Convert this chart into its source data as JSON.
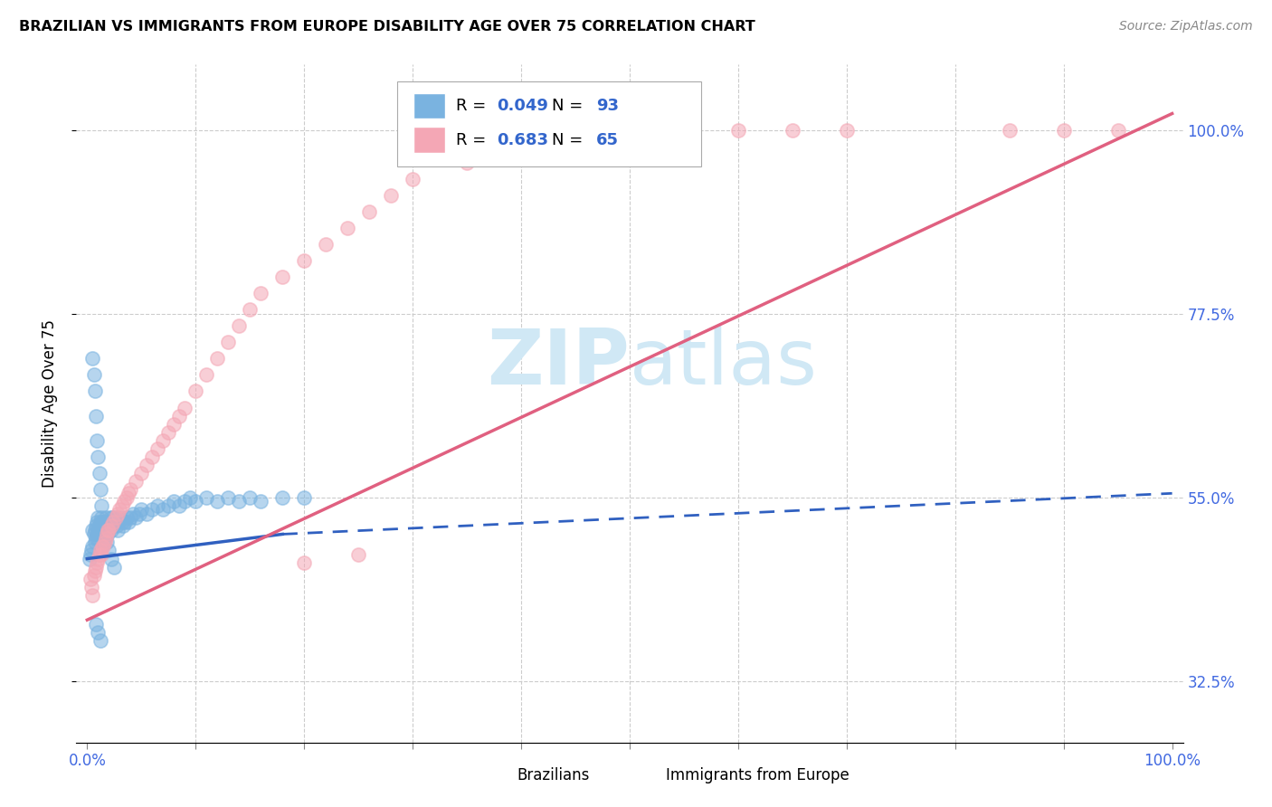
{
  "title": "BRAZILIAN VS IMMIGRANTS FROM EUROPE DISABILITY AGE OVER 75 CORRELATION CHART",
  "source": "Source: ZipAtlas.com",
  "ylabel": "Disability Age Over 75",
  "blue_color": "#7ab3e0",
  "pink_color": "#f4a7b5",
  "line_blue_color": "#3060c0",
  "line_pink_color": "#e06080",
  "watermark_zip": "ZIP",
  "watermark_atlas": "atlas",
  "watermark_color": "#d0e8f5",
  "background_color": "#ffffff",
  "legend_r_blue": "0.049",
  "legend_n_blue": "93",
  "legend_r_pink": "0.683",
  "legend_n_pink": "65",
  "blue_x": [
    0.002,
    0.003,
    0.004,
    0.005,
    0.005,
    0.006,
    0.007,
    0.007,
    0.008,
    0.008,
    0.009,
    0.009,
    0.01,
    0.01,
    0.01,
    0.011,
    0.011,
    0.012,
    0.012,
    0.013,
    0.013,
    0.014,
    0.014,
    0.015,
    0.015,
    0.016,
    0.016,
    0.017,
    0.017,
    0.018,
    0.018,
    0.019,
    0.019,
    0.02,
    0.02,
    0.021,
    0.021,
    0.022,
    0.022,
    0.023,
    0.024,
    0.025,
    0.026,
    0.027,
    0.028,
    0.029,
    0.03,
    0.032,
    0.033,
    0.035,
    0.036,
    0.038,
    0.04,
    0.042,
    0.045,
    0.048,
    0.05,
    0.055,
    0.06,
    0.065,
    0.07,
    0.075,
    0.08,
    0.085,
    0.09,
    0.095,
    0.1,
    0.11,
    0.12,
    0.13,
    0.14,
    0.15,
    0.16,
    0.18,
    0.2,
    0.005,
    0.006,
    0.007,
    0.008,
    0.009,
    0.01,
    0.011,
    0.012,
    0.013,
    0.015,
    0.016,
    0.018,
    0.02,
    0.022,
    0.025,
    0.008,
    0.01,
    0.012
  ],
  "blue_y": [
    0.475,
    0.48,
    0.485,
    0.49,
    0.51,
    0.505,
    0.51,
    0.495,
    0.5,
    0.515,
    0.505,
    0.52,
    0.51,
    0.5,
    0.525,
    0.515,
    0.505,
    0.52,
    0.51,
    0.525,
    0.515,
    0.505,
    0.52,
    0.515,
    0.505,
    0.52,
    0.51,
    0.525,
    0.515,
    0.51,
    0.52,
    0.515,
    0.505,
    0.52,
    0.51,
    0.525,
    0.515,
    0.52,
    0.51,
    0.525,
    0.515,
    0.52,
    0.525,
    0.515,
    0.51,
    0.52,
    0.525,
    0.52,
    0.515,
    0.52,
    0.525,
    0.52,
    0.525,
    0.53,
    0.525,
    0.53,
    0.535,
    0.53,
    0.535,
    0.54,
    0.535,
    0.54,
    0.545,
    0.54,
    0.545,
    0.55,
    0.545,
    0.55,
    0.545,
    0.55,
    0.545,
    0.55,
    0.545,
    0.55,
    0.55,
    0.72,
    0.7,
    0.68,
    0.65,
    0.62,
    0.6,
    0.58,
    0.56,
    0.54,
    0.52,
    0.5,
    0.495,
    0.485,
    0.475,
    0.465,
    0.395,
    0.385,
    0.375
  ],
  "pink_x": [
    0.003,
    0.004,
    0.005,
    0.006,
    0.007,
    0.008,
    0.009,
    0.01,
    0.011,
    0.012,
    0.013,
    0.014,
    0.015,
    0.016,
    0.017,
    0.018,
    0.019,
    0.02,
    0.022,
    0.024,
    0.026,
    0.028,
    0.03,
    0.032,
    0.034,
    0.036,
    0.038,
    0.04,
    0.045,
    0.05,
    0.055,
    0.06,
    0.065,
    0.07,
    0.075,
    0.08,
    0.085,
    0.09,
    0.1,
    0.11,
    0.12,
    0.13,
    0.14,
    0.15,
    0.16,
    0.18,
    0.2,
    0.22,
    0.24,
    0.26,
    0.28,
    0.3,
    0.35,
    0.4,
    0.45,
    0.5,
    0.55,
    0.6,
    0.65,
    0.7,
    0.85,
    0.9,
    0.95,
    0.2,
    0.25
  ],
  "pink_y": [
    0.45,
    0.44,
    0.43,
    0.455,
    0.46,
    0.465,
    0.47,
    0.475,
    0.48,
    0.485,
    0.48,
    0.49,
    0.49,
    0.495,
    0.5,
    0.505,
    0.51,
    0.51,
    0.515,
    0.52,
    0.525,
    0.53,
    0.535,
    0.54,
    0.545,
    0.55,
    0.555,
    0.56,
    0.57,
    0.58,
    0.59,
    0.6,
    0.61,
    0.62,
    0.63,
    0.64,
    0.65,
    0.66,
    0.68,
    0.7,
    0.72,
    0.74,
    0.76,
    0.78,
    0.8,
    0.82,
    0.84,
    0.86,
    0.88,
    0.9,
    0.92,
    0.94,
    0.96,
    0.97,
    0.97,
    0.98,
    0.99,
    1.0,
    1.0,
    1.0,
    1.0,
    1.0,
    1.0,
    0.47,
    0.48
  ],
  "blue_line_x0": 0.0,
  "blue_line_x_solid_end": 0.18,
  "blue_line_x1": 1.0,
  "blue_line_y0": 0.475,
  "blue_line_y_solid_end": 0.505,
  "blue_line_y1": 0.555,
  "pink_line_x0": 0.0,
  "pink_line_x1": 1.0,
  "pink_line_y0": 0.4,
  "pink_line_y1": 1.02,
  "xmin": 0.0,
  "xmax": 1.0,
  "ymin": 0.25,
  "ymax": 1.08,
  "yticks": [
    0.325,
    0.55,
    0.775,
    1.0
  ],
  "ytick_labels": [
    "32.5%",
    "55.0%",
    "77.5%",
    "100.0%"
  ],
  "xticks": [
    0.0,
    0.1,
    0.2,
    0.3,
    0.4,
    0.5,
    0.6,
    0.7,
    0.8,
    0.9,
    1.0
  ]
}
